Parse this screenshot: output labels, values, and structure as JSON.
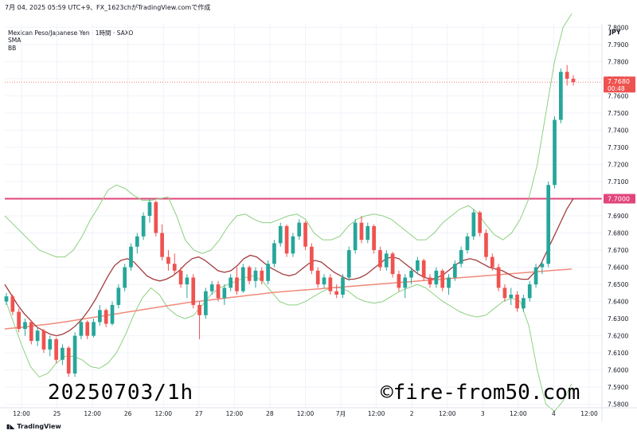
{
  "header": {
    "info": "7月 04, 2025 05:59 UTC+9、FX_1623chがTradingView.comで作成",
    "pair": "Mexican Peso/Japanese Yen · 1時間 · SAXO",
    "sma": "SMA",
    "bb": "BB"
  },
  "currency": "JPY",
  "branding": "TradingView",
  "watermark": {
    "date": "20250703/1h",
    "site": "©fire-from50.com"
  },
  "price_tag": {
    "price": "7.7680",
    "countdown": "00:48"
  },
  "level_tag": "7.7000",
  "colors": {
    "up": "#26a69a",
    "down": "#ef5350",
    "bb": "#8ed081",
    "sma_short": "#a23c3c",
    "sma_long": "#f08a7a",
    "level": "#e0457b",
    "grid": "#f0f3fa"
  },
  "chart_data": {
    "type": "candlestick",
    "y_axis": {
      "ticks": [
        "7.5800",
        "7.5900",
        "7.6000",
        "7.6100",
        "7.6200",
        "7.6300",
        "7.6400",
        "7.6500",
        "7.6600",
        "7.6700",
        "7.6800",
        "7.6900",
        "7.7000",
        "7.7100",
        "7.7200",
        "7.7300",
        "7.7400",
        "7.7500",
        "7.7600",
        "7.7700",
        "7.7800",
        "7.7900",
        "7.8000"
      ],
      "range": [
        7.578,
        7.802
      ]
    },
    "x_axis": {
      "ticks": [
        "12:00",
        "25",
        "12:00",
        "26",
        "12:00",
        "27",
        "12:00",
        "28",
        "12:00",
        "7月",
        "12:00",
        "2",
        "12:00",
        "3",
        "12:00",
        "4",
        "12:00"
      ]
    },
    "horizontal_line": 7.7,
    "last_price": 7.768,
    "candles": [
      [
        7.64,
        7.645,
        7.638,
        7.643
      ],
      [
        7.643,
        7.644,
        7.632,
        7.634
      ],
      [
        7.634,
        7.636,
        7.622,
        7.624
      ],
      [
        7.624,
        7.63,
        7.62,
        7.628
      ],
      [
        7.628,
        7.629,
        7.615,
        7.617
      ],
      [
        7.617,
        7.625,
        7.614,
        7.623
      ],
      [
        7.623,
        7.624,
        7.61,
        7.612
      ],
      [
        7.612,
        7.62,
        7.608,
        7.618
      ],
      [
        7.618,
        7.619,
        7.604,
        7.606
      ],
      [
        7.606,
        7.615,
        7.603,
        7.613
      ],
      [
        7.613,
        7.614,
        7.596,
        7.598
      ],
      [
        7.598,
        7.622,
        7.596,
        7.62
      ],
      [
        7.62,
        7.63,
        7.618,
        7.628
      ],
      [
        7.628,
        7.629,
        7.618,
        7.62
      ],
      [
        7.62,
        7.63,
        7.619,
        7.628
      ],
      [
        7.628,
        7.638,
        7.626,
        7.635
      ],
      [
        7.635,
        7.636,
        7.625,
        7.627
      ],
      [
        7.627,
        7.64,
        7.626,
        7.638
      ],
      [
        7.638,
        7.65,
        7.636,
        7.648
      ],
      [
        7.648,
        7.662,
        7.646,
        7.66
      ],
      [
        7.66,
        7.674,
        7.658,
        7.672
      ],
      [
        7.672,
        7.68,
        7.668,
        7.678
      ],
      [
        7.678,
        7.692,
        7.676,
        7.69
      ],
      [
        7.69,
        7.7,
        7.686,
        7.698
      ],
      [
        7.698,
        7.699,
        7.678,
        7.68
      ],
      [
        7.68,
        7.685,
        7.664,
        7.666
      ],
      [
        7.666,
        7.67,
        7.658,
        7.662
      ],
      [
        7.662,
        7.668,
        7.656,
        7.658
      ],
      [
        7.658,
        7.66,
        7.648,
        7.65
      ],
      [
        7.65,
        7.656,
        7.642,
        7.654
      ],
      [
        7.654,
        7.656,
        7.636,
        7.638
      ],
      [
        7.638,
        7.64,
        7.618,
        7.632
      ],
      [
        7.632,
        7.648,
        7.63,
        7.646
      ],
      [
        7.646,
        7.652,
        7.644,
        7.65
      ],
      [
        7.65,
        7.652,
        7.64,
        7.642
      ],
      [
        7.642,
        7.65,
        7.638,
        7.648
      ],
      [
        7.648,
        7.656,
        7.646,
        7.654
      ],
      [
        7.654,
        7.66,
        7.644,
        7.646
      ],
      [
        7.646,
        7.662,
        7.645,
        7.66
      ],
      [
        7.66,
        7.661,
        7.65,
        7.652
      ],
      [
        7.652,
        7.66,
        7.648,
        7.658
      ],
      [
        7.658,
        7.66,
        7.65,
        7.652
      ],
      [
        7.652,
        7.664,
        7.65,
        7.662
      ],
      [
        7.662,
        7.676,
        7.66,
        7.674
      ],
      [
        7.674,
        7.686,
        7.672,
        7.684
      ],
      [
        7.684,
        7.685,
        7.666,
        7.668
      ],
      [
        7.668,
        7.68,
        7.666,
        7.678
      ],
      [
        7.678,
        7.688,
        7.676,
        7.686
      ],
      [
        7.686,
        7.687,
        7.67,
        7.672
      ],
      [
        7.672,
        7.674,
        7.656,
        7.658
      ],
      [
        7.658,
        7.66,
        7.648,
        7.65
      ],
      [
        7.65,
        7.656,
        7.648,
        7.654
      ],
      [
        7.654,
        7.656,
        7.644,
        7.646
      ],
      [
        7.646,
        7.65,
        7.642,
        7.644
      ],
      [
        7.644,
        7.656,
        7.642,
        7.654
      ],
      [
        7.654,
        7.672,
        7.652,
        7.67
      ],
      [
        7.67,
        7.688,
        7.668,
        7.686
      ],
      [
        7.686,
        7.69,
        7.674,
        7.676
      ],
      [
        7.676,
        7.686,
        7.674,
        7.684
      ],
      [
        7.684,
        7.685,
        7.668,
        7.67
      ],
      [
        7.67,
        7.672,
        7.658,
        7.66
      ],
      [
        7.66,
        7.67,
        7.658,
        7.668
      ],
      [
        7.668,
        7.669,
        7.654,
        7.656
      ],
      [
        7.656,
        7.658,
        7.646,
        7.648
      ],
      [
        7.648,
        7.656,
        7.642,
        7.654
      ],
      [
        7.654,
        7.66,
        7.65,
        7.658
      ],
      [
        7.658,
        7.666,
        7.656,
        7.664
      ],
      [
        7.664,
        7.665,
        7.652,
        7.654
      ],
      [
        7.654,
        7.656,
        7.648,
        7.65
      ],
      [
        7.65,
        7.66,
        7.648,
        7.658
      ],
      [
        7.658,
        7.659,
        7.646,
        7.648
      ],
      [
        7.648,
        7.656,
        7.644,
        7.654
      ],
      [
        7.654,
        7.664,
        7.652,
        7.662
      ],
      [
        7.662,
        7.672,
        7.66,
        7.67
      ],
      [
        7.67,
        7.68,
        7.668,
        7.678
      ],
      [
        7.678,
        7.694,
        7.676,
        7.692
      ],
      [
        7.692,
        7.693,
        7.678,
        7.68
      ],
      [
        7.68,
        7.682,
        7.664,
        7.666
      ],
      [
        7.666,
        7.668,
        7.658,
        7.66
      ],
      [
        7.66,
        7.662,
        7.646,
        7.648
      ],
      [
        7.648,
        7.65,
        7.64,
        7.642
      ],
      [
        7.642,
        7.648,
        7.638,
        7.644
      ],
      [
        7.644,
        7.646,
        7.634,
        7.636
      ],
      [
        7.636,
        7.644,
        7.634,
        7.642
      ],
      [
        7.642,
        7.652,
        7.64,
        7.65
      ],
      [
        7.65,
        7.662,
        7.648,
        7.66
      ],
      [
        7.66,
        7.664,
        7.656,
        7.662
      ],
      [
        7.662,
        7.71,
        7.66,
        7.708
      ],
      [
        7.708,
        7.748,
        7.706,
        7.746
      ],
      [
        7.746,
        7.776,
        7.744,
        7.774
      ],
      [
        7.774,
        7.778,
        7.766,
        7.77
      ],
      [
        7.77,
        7.772,
        7.766,
        7.768
      ]
    ],
    "sma_short": [
      7.65,
      7.644,
      7.638,
      7.633,
      7.629,
      7.625,
      7.623,
      7.621,
      7.62,
      7.621,
      7.623,
      7.626,
      7.63,
      7.635,
      7.641,
      7.648,
      7.655,
      7.661,
      7.664,
      7.665,
      7.663,
      7.659,
      7.655,
      7.653,
      7.652,
      7.653,
      7.655,
      7.658,
      7.662,
      7.665,
      7.666,
      7.664,
      7.661,
      7.658,
      7.657,
      7.658,
      7.661,
      7.665,
      7.667,
      7.666,
      7.663,
      7.66,
      7.658,
      7.656,
      7.655,
      7.656,
      7.659,
      7.662,
      7.664,
      7.663,
      7.66,
      7.657,
      7.655,
      7.653,
      7.653,
      7.654,
      7.656,
      7.659,
      7.662,
      7.665,
      7.666,
      7.665,
      7.662,
      7.659,
      7.656,
      7.654,
      7.653,
      7.654,
      7.656,
      7.659,
      7.662,
      7.664,
      7.665,
      7.664,
      7.662,
      7.66,
      7.659,
      7.658,
      7.656,
      7.654,
      7.653,
      7.653,
      7.657,
      7.662,
      7.67,
      7.678,
      7.686,
      7.694,
      7.7
    ],
    "sma_long": [
      7.624,
      7.6245,
      7.625,
      7.6256,
      7.6262,
      7.6268,
      7.6275,
      7.6282,
      7.629,
      7.6298,
      7.6306,
      7.6314,
      7.6322,
      7.633,
      7.6338,
      7.6346,
      7.6354,
      7.6362,
      7.637,
      7.6378,
      7.6386,
      7.6394,
      7.64,
      7.6406,
      7.6412,
      7.6418,
      7.6424,
      7.643,
      7.6436,
      7.6442,
      7.6448,
      7.6454,
      7.6458,
      7.6462,
      7.6466,
      7.647,
      7.6474,
      7.6478,
      7.6482,
      7.6486,
      7.649,
      7.6494,
      7.6498,
      7.6502,
      7.6506,
      7.651,
      7.6514,
      7.6518,
      7.6522,
      7.6526,
      7.653,
      7.6534,
      7.6538,
      7.6542,
      7.6546,
      7.655,
      7.6554,
      7.6558,
      7.6562,
      7.6566,
      7.657,
      7.6574,
      7.6578,
      7.6582,
      7.6586,
      7.659
    ],
    "bb_upper": [
      7.69,
      7.685,
      7.68,
      7.675,
      7.67,
      7.668,
      7.666,
      7.666,
      7.67,
      7.678,
      7.688,
      7.696,
      7.705,
      7.708,
      7.706,
      7.702,
      7.699,
      7.699,
      7.7,
      7.701,
      7.69,
      7.676,
      7.67,
      7.668,
      7.67,
      7.676,
      7.684,
      7.69,
      7.691,
      7.688,
      7.686,
      7.686,
      7.688,
      7.69,
      7.691,
      7.688,
      7.68,
      7.676,
      7.676,
      7.678,
      7.684,
      7.688,
      7.69,
      7.691,
      7.69,
      7.688,
      7.684,
      7.68,
      7.676,
      7.676,
      7.68,
      7.686,
      7.69,
      7.694,
      7.696,
      7.692,
      7.685,
      7.679,
      7.676,
      7.68,
      7.688,
      7.7,
      7.72,
      7.75,
      7.78,
      7.8,
      7.808
    ],
    "bb_lower": [
      7.642,
      7.628,
      7.614,
      7.602,
      7.596,
      7.598,
      7.604,
      7.608,
      7.608,
      7.606,
      7.602,
      7.601,
      7.604,
      7.61,
      7.62,
      7.632,
      7.642,
      7.648,
      7.644,
      7.636,
      7.632,
      7.63,
      7.632,
      7.638,
      7.644,
      7.648,
      7.65,
      7.652,
      7.654,
      7.655,
      7.652,
      7.646,
      7.64,
      7.638,
      7.638,
      7.64,
      7.643,
      7.646,
      7.648,
      7.648,
      7.646,
      7.642,
      7.64,
      7.639,
      7.64,
      7.643,
      7.646,
      7.648,
      7.65,
      7.648,
      7.644,
      7.64,
      7.637,
      7.634,
      7.632,
      7.631,
      7.632,
      7.636,
      7.64,
      7.642,
      7.64,
      7.626,
      7.6,
      7.58,
      7.576,
      7.582,
      7.592
    ]
  }
}
